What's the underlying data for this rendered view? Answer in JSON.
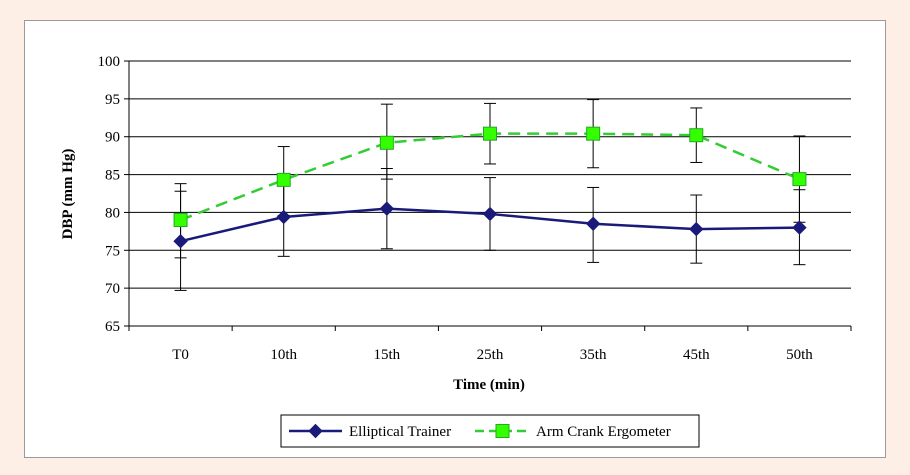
{
  "chart_data": {
    "type": "line",
    "title": "",
    "xlabel": "Time (min)",
    "ylabel": "DBP (mm Hg)",
    "categories": [
      "T0",
      "10th",
      "15th",
      "25th",
      "35th",
      "45th",
      "50th"
    ],
    "ylim": [
      65,
      100
    ],
    "yticks": [
      65,
      70,
      75,
      80,
      85,
      90,
      95,
      100
    ],
    "grid": true,
    "legend_position": "bottom",
    "series": [
      {
        "name": "Elliptical Trainer",
        "color": "#1a1a7a",
        "line_style": "solid",
        "marker": "diamond",
        "values": [
          76.2,
          79.4,
          80.5,
          79.8,
          78.5,
          77.8,
          78.0
        ],
        "error_low": [
          69.7,
          74.2,
          75.2,
          75.0,
          73.4,
          73.3,
          73.1
        ],
        "error_high": [
          82.8,
          84.6,
          85.8,
          84.6,
          83.3,
          82.3,
          83.0
        ]
      },
      {
        "name": "Arm Crank Ergometer",
        "color": "#33cc33",
        "line_style": "dashed",
        "marker": "square",
        "values": [
          79.0,
          84.3,
          89.2,
          90.4,
          90.4,
          90.2,
          84.4
        ],
        "error_low": [
          74.0,
          79.6,
          84.4,
          86.4,
          85.9,
          86.6,
          78.7
        ],
        "error_high": [
          83.8,
          88.7,
          94.3,
          94.4,
          94.9,
          93.8,
          90.1
        ]
      }
    ]
  }
}
